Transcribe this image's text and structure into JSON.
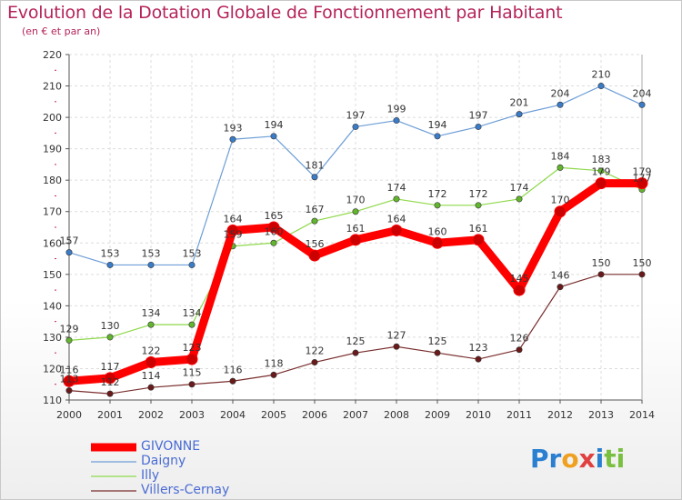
{
  "chart_data": {
    "type": "line",
    "title": "Evolution de la Dotation Globale de Fonctionnement par Habitant",
    "subtitle": "(en € et par an)",
    "xlabel": "",
    "ylabel": "",
    "ylim": [
      110,
      220
    ],
    "yticks": [
      110,
      120,
      130,
      140,
      150,
      160,
      170,
      180,
      190,
      200,
      210,
      220
    ],
    "x": [
      "2000",
      "2001",
      "2002",
      "2003",
      "2004",
      "2005",
      "2006",
      "2007",
      "2008",
      "2009",
      "2010",
      "2011",
      "2012",
      "2013",
      "2014"
    ],
    "grid": true,
    "legend_position": "bottom-left",
    "series": [
      {
        "name": "GIVONNE",
        "color": "#ff0000",
        "values": [
          116,
          117,
          122,
          123,
          164,
          165,
          156,
          161,
          164,
          160,
          161,
          145,
          170,
          179,
          179
        ]
      },
      {
        "name": "Daigny",
        "color": "#6d9ed6",
        "values": [
          157,
          153,
          153,
          153,
          193,
          194,
          181,
          197,
          199,
          194,
          197,
          201,
          204,
          210,
          204
        ]
      },
      {
        "name": "Illy",
        "color": "#8ed94a",
        "values": [
          129,
          130,
          134,
          134,
          159,
          160,
          167,
          170,
          174,
          172,
          172,
          174,
          184,
          183,
          177
        ]
      },
      {
        "name": "Villers-Cernay",
        "color": "#7a2e2e",
        "values": [
          113,
          112,
          114,
          115,
          116,
          118,
          122,
          125,
          127,
          125,
          123,
          126,
          146,
          150,
          150
        ]
      }
    ]
  },
  "logo": {
    "p1": "Pr",
    "p2": "o",
    "p3": "x",
    "p4": "i",
    "p5": "ti"
  }
}
